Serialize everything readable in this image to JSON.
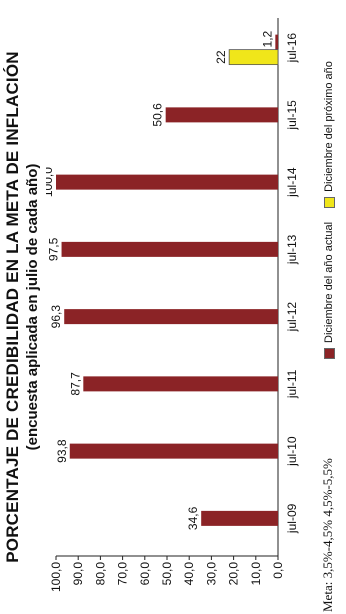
{
  "chart_data": {
    "type": "bar",
    "title": "PORCENTAJE DE CREDIBILIDAD EN LA META DE INFLACIÓN",
    "subtitle": "(encuesta aplicada en julio de cada año)",
    "categories": [
      "jul-09",
      "jul-10",
      "jul-11",
      "jul-12",
      "jul-13",
      "jul-14",
      "jul-15",
      "jul-16"
    ],
    "ylim": [
      0,
      100
    ],
    "yticks": [
      "0,0",
      "10,0",
      "20,0",
      "30,0",
      "40,0",
      "50,0",
      "60,0",
      "70,0",
      "80,0",
      "90,0",
      "100,0"
    ],
    "series": [
      {
        "name": "Diciembre del año actual",
        "color": "#8b2326",
        "values": [
          34.6,
          93.8,
          87.7,
          96.3,
          97.5,
          100.0,
          50.6,
          1.2
        ],
        "labels": [
          "34,6",
          "93,8",
          "87,7",
          "96,3",
          "97,5",
          "100,0",
          "50,6",
          "1,2"
        ]
      },
      {
        "name": "Diciembre del próximo año",
        "color": "#f0e61a",
        "values": [
          null,
          null,
          null,
          null,
          null,
          null,
          null,
          22
        ],
        "labels": [
          "",
          "",
          "",
          "",
          "",
          "",
          "",
          "22"
        ]
      }
    ],
    "grid": false,
    "legend_position": "bottom-right"
  },
  "meta": {
    "label": "Meta:",
    "values": [
      "3,5%-4,5%",
      "4,5%-5,5%"
    ]
  }
}
